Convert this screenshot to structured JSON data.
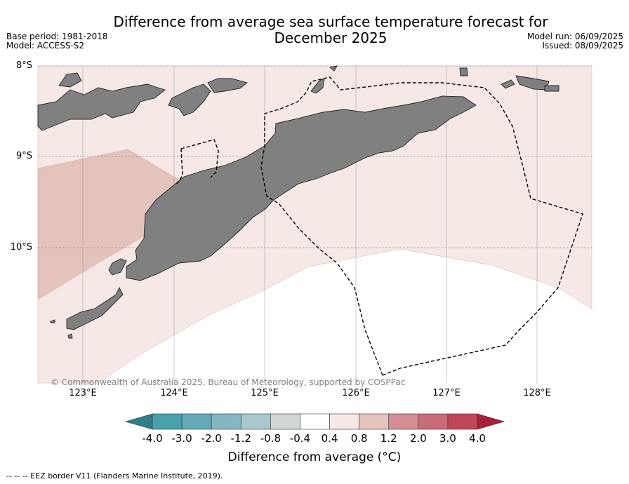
{
  "title_line1": "Difference from average sea surface temperature forecast for",
  "title_line2": "December 2025",
  "meta_left": [
    "Base period: 1981-2018",
    "Model: ACCESS-S2"
  ],
  "meta_right": [
    "Model run: 06/09/2025",
    "Issued: 08/09/2025"
  ],
  "lat_labels": [
    "8°S",
    "9°S",
    "10°S"
  ],
  "lon_labels": [
    "123°E",
    "124°E",
    "125°E",
    "126°E",
    "127°E",
    "128°E"
  ],
  "copyright": "© Commonwealth of Australia 2025, Bureau of Meteorology, supported by COSPPac",
  "colorbar": {
    "ticks": [
      "-4.0",
      "-3.0",
      "-2.0",
      "-1.2",
      "-0.8",
      "-0.4",
      "0.4",
      "0.8",
      "1.2",
      "2.0",
      "3.0",
      "4.0"
    ],
    "colors": [
      "#2f7f8a",
      "#4aa0ad",
      "#64a9b5",
      "#86b7c1",
      "#a9c8cb",
      "#d0d5d6",
      "#ffffff",
      "#f5e8e5",
      "#e5c3bd",
      "#d48e94",
      "#c86c77",
      "#bf4858",
      "#a8203a"
    ],
    "label": "Difference from average (°C)"
  },
  "eez_legend": "-- -- -- EEZ border V11 (Flanders Marine Institute, 2019).",
  "colors": {
    "land": "#808080",
    "anomaly_0_4_to_0_8": "#f5e8e5",
    "anomaly_0_8_to_1_2": "#e5c3bd",
    "anomaly_neutral": "#ffffff"
  }
}
